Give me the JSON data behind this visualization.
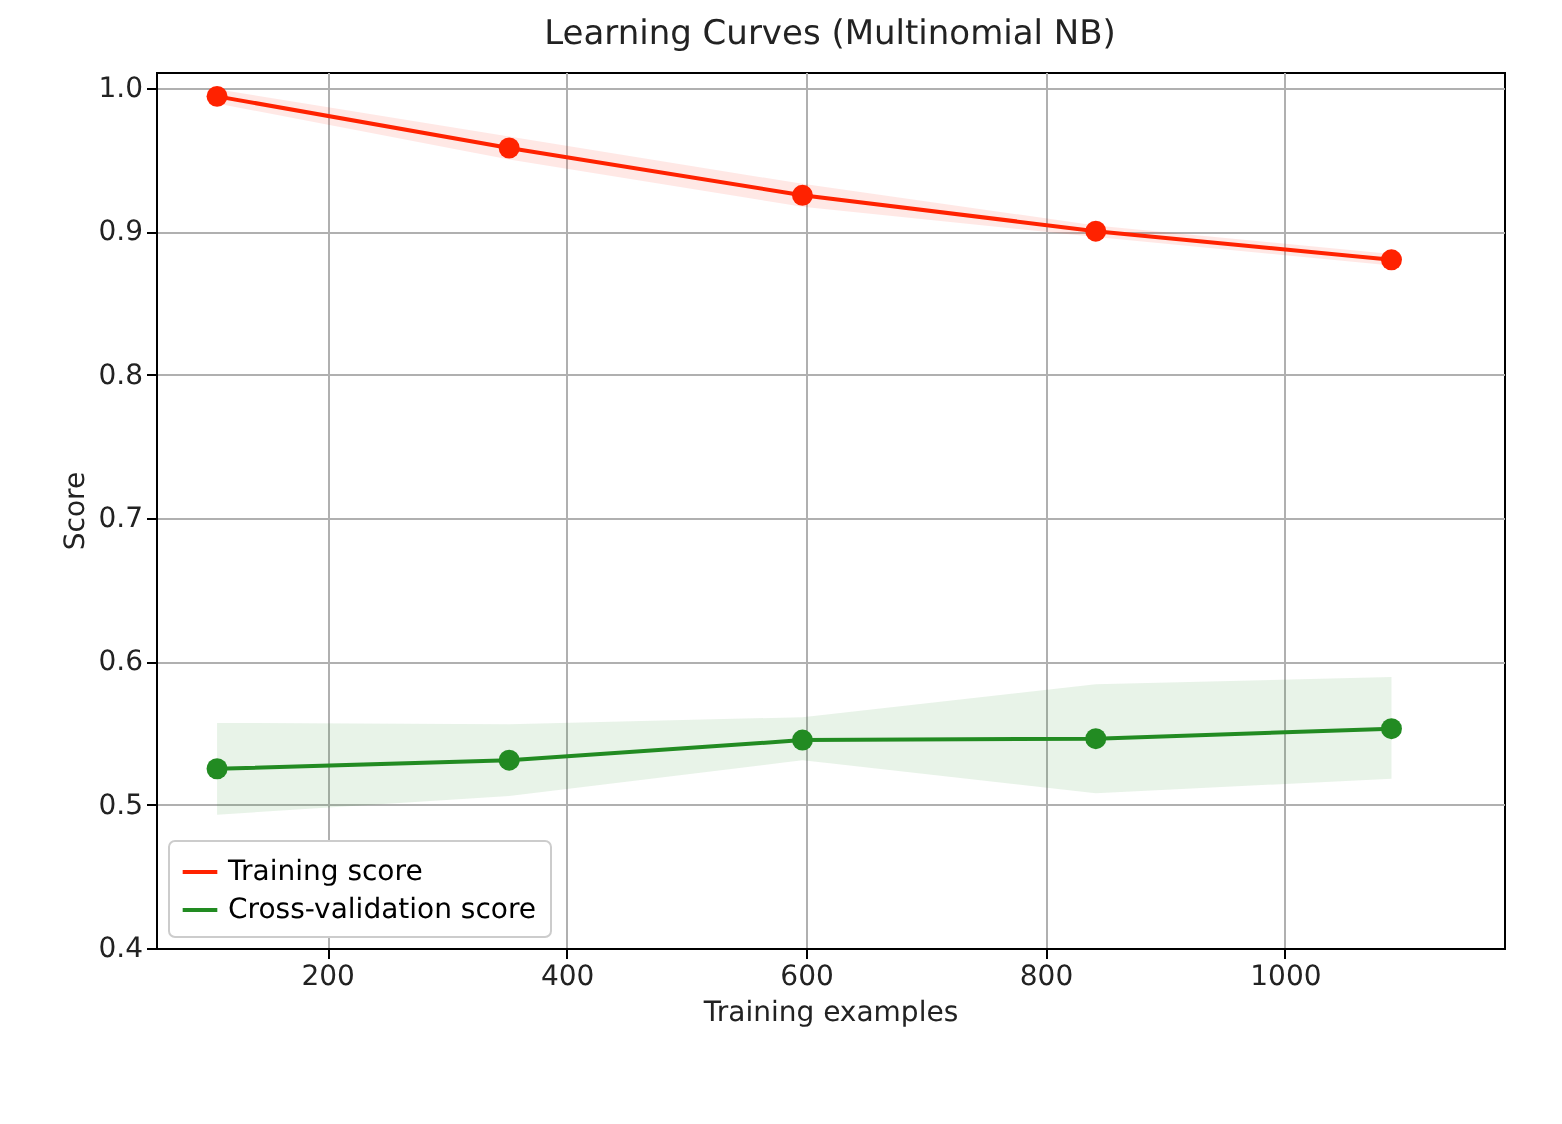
{
  "chart_data": {
    "type": "line",
    "title": "Learning Curves (Multinomial NB)",
    "xlabel": "Training examples",
    "ylabel": "Score",
    "x": [
      108,
      352,
      597,
      842,
      1089
    ],
    "series": [
      {
        "name": "Training score",
        "color": "#ff2200",
        "values": [
          0.994,
          0.958,
          0.925,
          0.9,
          0.88
        ],
        "lower": [
          0.989,
          0.95,
          0.917,
          0.896,
          0.876
        ],
        "upper": [
          0.999,
          0.966,
          0.933,
          0.904,
          0.884
        ]
      },
      {
        "name": "Cross-validation score",
        "color": "#228b22",
        "values": [
          0.525,
          0.531,
          0.545,
          0.546,
          0.553
        ],
        "lower": [
          0.493,
          0.506,
          0.531,
          0.508,
          0.518
        ],
        "upper": [
          0.557,
          0.556,
          0.561,
          0.584,
          0.589
        ]
      }
    ],
    "xlim": [
      57,
      1183
    ],
    "xticks": [
      200,
      400,
      600,
      800,
      1000
    ],
    "ylim": [
      0.4,
      1.011
    ],
    "yticks": [
      0.4,
      0.5,
      0.6,
      0.7,
      0.8,
      0.9,
      {
        "value": 1,
        "label": "1.0"
      }
    ],
    "grid": true,
    "legend": "bottom left",
    "marker": "circle",
    "line_style": "solid"
  }
}
